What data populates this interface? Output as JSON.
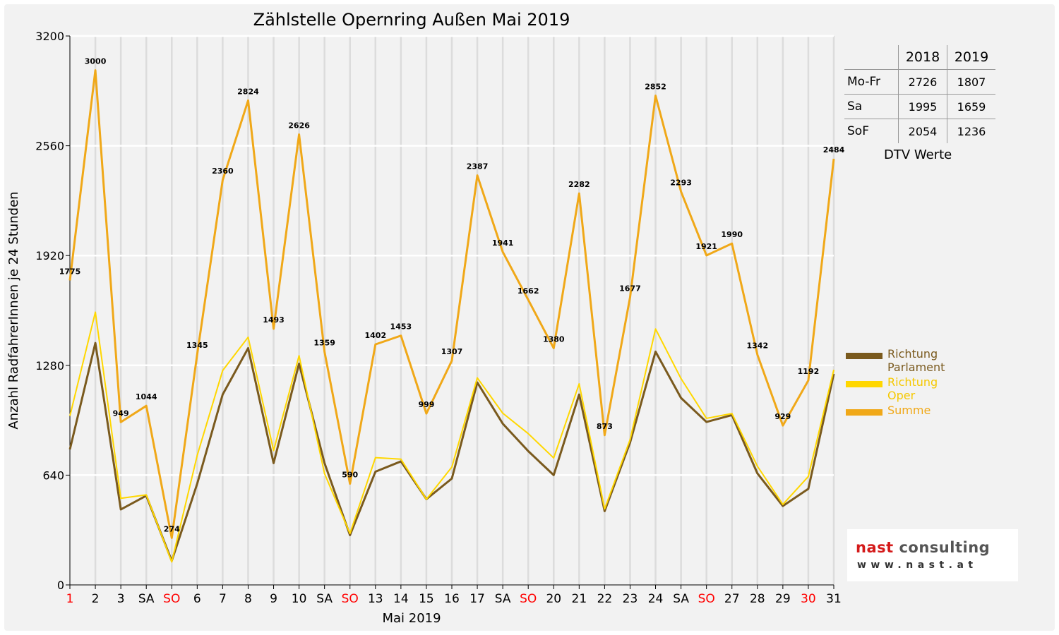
{
  "chart_data": {
    "type": "line",
    "title": "Zählstelle Opernring Außen Mai 2019",
    "xlabel": "Mai 2019",
    "ylabel": "Anzahl RadfahrerInnen je 24 Stunden",
    "ylim": [
      0,
      3200
    ],
    "yticks": [
      0,
      640,
      1280,
      1920,
      2560,
      3200
    ],
    "grid": true,
    "legend_position": "right",
    "categories": [
      "1",
      "2",
      "3",
      "SA",
      "SO",
      "6",
      "7",
      "8",
      "9",
      "10",
      "SA",
      "SO",
      "13",
      "14",
      "15",
      "16",
      "17",
      "SA",
      "SO",
      "20",
      "21",
      "22",
      "23",
      "24",
      "SA",
      "SO",
      "27",
      "28",
      "29",
      "30",
      "31"
    ],
    "red_categories": [
      0,
      4,
      11,
      18,
      25,
      29
    ],
    "series": [
      {
        "name": "Richtung Parlament",
        "color": "#7a5a1e",
        "values": [
          790,
          1410,
          440,
          520,
          140,
          590,
          1110,
          1380,
          710,
          1290,
          710,
          290,
          660,
          720,
          500,
          620,
          1180,
          940,
          780,
          640,
          1110,
          430,
          830,
          1360,
          1090,
          950,
          990,
          650,
          460,
          560,
          1230
        ]
      },
      {
        "name": "Richtung Oper",
        "color": "#ffd700",
        "values": [
          985,
          1590,
          505,
          525,
          134,
          755,
          1250,
          1444,
          783,
          1336,
          649,
          300,
          742,
          733,
          499,
          687,
          1207,
          1001,
          882,
          740,
          1172,
          443,
          847,
          1492,
          1203,
          971,
          999,
          692,
          469,
          632,
          1254
        ]
      },
      {
        "name": "Summe",
        "color": "#f0a818",
        "values": [
          1775,
          3000,
          949,
          1044,
          274,
          1345,
          2360,
          2824,
          1493,
          2626,
          1359,
          590,
          1402,
          1453,
          999,
          1307,
          2387,
          1941,
          1662,
          1380,
          2282,
          873,
          1677,
          2852,
          2293,
          1921,
          1990,
          1342,
          929,
          1192,
          2484
        ],
        "labels": [
          "1775",
          "3000",
          "949",
          "1044",
          "274",
          "1345",
          "2360",
          "2824",
          "1493",
          "2626",
          "1359",
          "590",
          "1402",
          "1453",
          "999",
          "1307",
          "2387",
          "1941",
          "1662",
          "1380",
          "2282",
          "873",
          "1677",
          "2852",
          "2293",
          "1921",
          "1990",
          "1342",
          "929",
          "1192",
          "2484"
        ]
      }
    ]
  },
  "dtv": {
    "headers": [
      "2018",
      "2019"
    ],
    "rows": [
      {
        "label": "Mo-Fr",
        "v2018": "2726",
        "v2019": "1807"
      },
      {
        "label": "Sa",
        "v2018": "1995",
        "v2019": "1659"
      },
      {
        "label": "SoF",
        "v2018": "2054",
        "v2019": "1236"
      }
    ],
    "caption": "DTV Werte"
  },
  "logo": {
    "name_part1": "nast",
    "name_part2": " consulting",
    "url": "www.nast.at"
  }
}
